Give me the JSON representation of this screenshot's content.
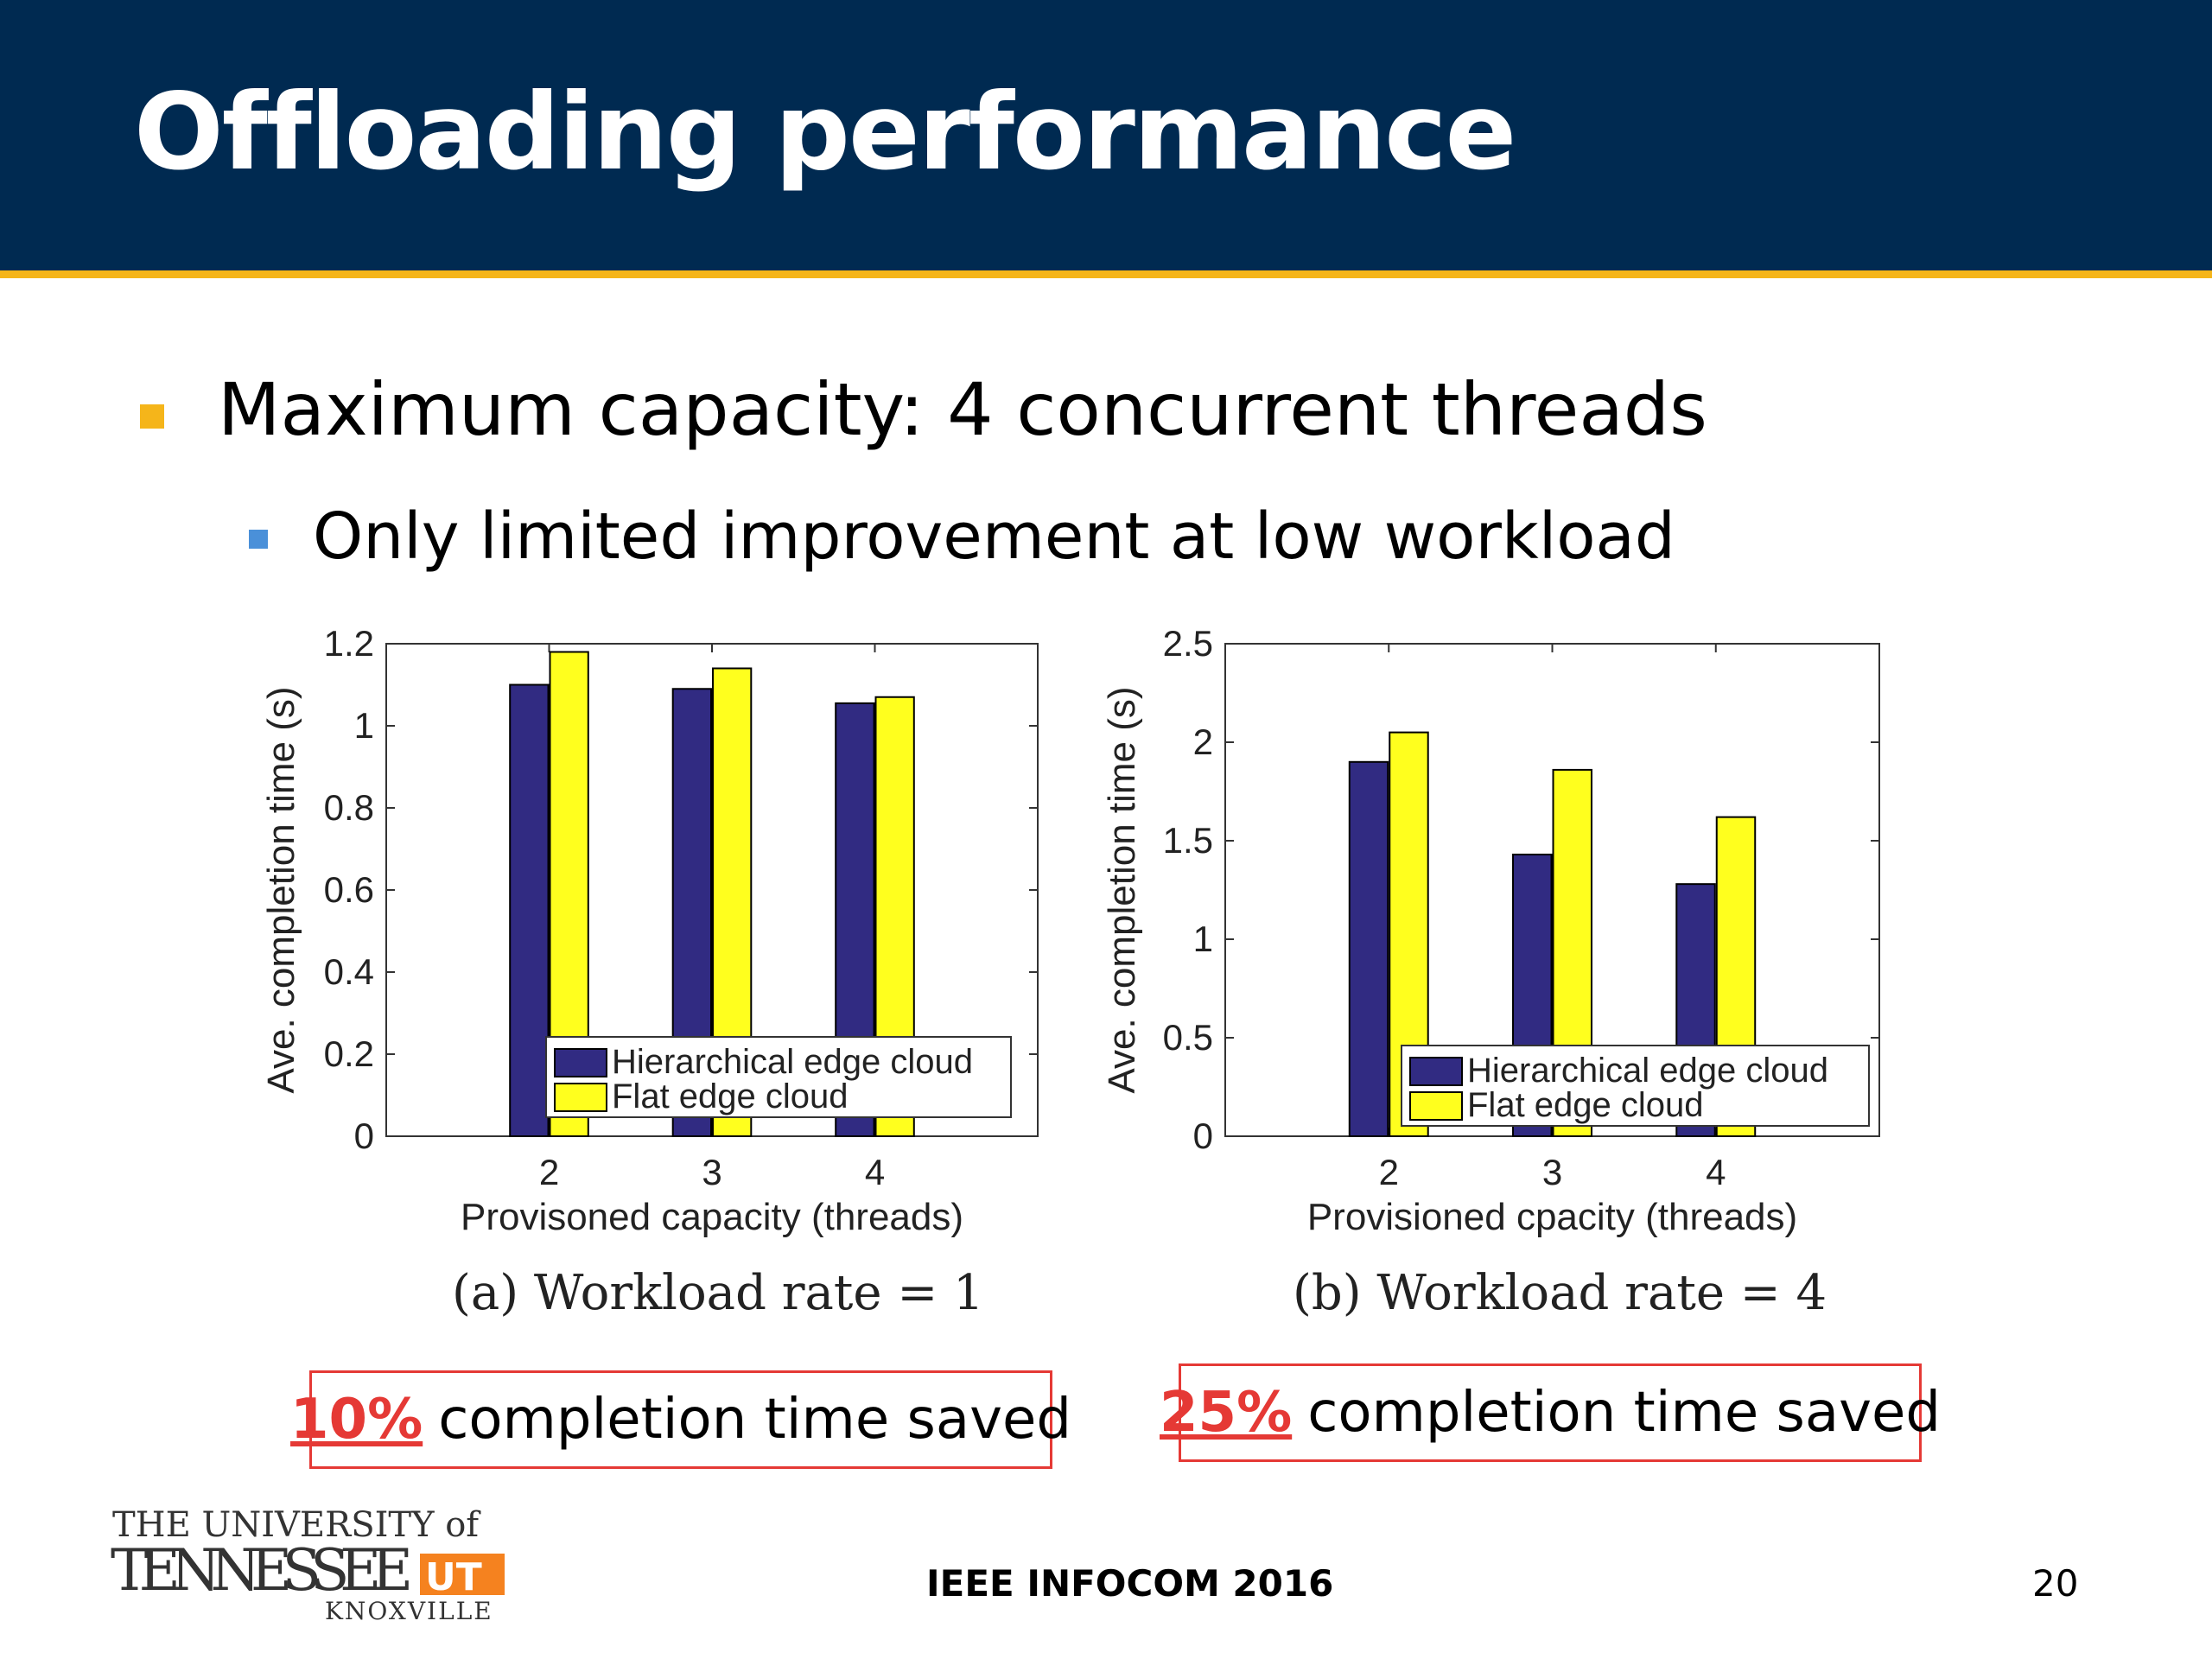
{
  "slide": {
    "title": "Offloading performance",
    "bullet1": "Maximum capacity: 4 concurrent threads",
    "bullet2": "Only limited improvement at low workload",
    "footer": "IEEE INFOCOM 2016",
    "page_number": "20",
    "logo": {
      "line1": "THE UNIVERSITY of",
      "line2": "TENNESSEE",
      "line3": "KNOXVILLE",
      "mark": "UT"
    },
    "savings": [
      {
        "percent": "10%",
        "text": "completion time saved"
      },
      {
        "percent": "25%",
        "text": "completion time saved"
      }
    ],
    "colors": {
      "header": "#002A51",
      "accent": "#F5B51A",
      "series1": "#312B82",
      "series2": "#FFFF1E",
      "highlight": "#E53935"
    }
  },
  "chart_data": [
    {
      "type": "bar",
      "caption": "(a)  Workload rate = 1",
      "categories": [
        "2",
        "3",
        "4"
      ],
      "xlabel": "Provisoned capacity (threads)",
      "ylabel": "Ave. completion time (s)",
      "ylim": [
        0,
        1.2
      ],
      "yticks": [
        "0",
        "0.2",
        "0.4",
        "0.6",
        "0.8",
        "1",
        "1.2"
      ],
      "xlim": [
        1,
        5
      ],
      "legend_position": "bottom-right",
      "series": [
        {
          "name": "Hierarchical edge cloud",
          "values": [
            1.1,
            1.09,
            1.055
          ]
        },
        {
          "name": "Flat edge cloud",
          "values": [
            1.18,
            1.14,
            1.07
          ]
        }
      ]
    },
    {
      "type": "bar",
      "caption": "(b)  Workload rate = 4",
      "categories": [
        "2",
        "3",
        "4"
      ],
      "xlabel": "Provisioned cpacity (threads)",
      "ylabel": "Ave. completion time (s)",
      "ylim": [
        0,
        2.5
      ],
      "yticks": [
        "0",
        "0.5",
        "1",
        "1.5",
        "2",
        "2.5"
      ],
      "xlim": [
        1,
        5
      ],
      "legend_position": "bottom-right",
      "series": [
        {
          "name": "Hierarchical edge cloud",
          "values": [
            1.9,
            1.43,
            1.28
          ]
        },
        {
          "name": "Flat edge cloud",
          "values": [
            2.05,
            1.86,
            1.62
          ]
        }
      ]
    }
  ]
}
